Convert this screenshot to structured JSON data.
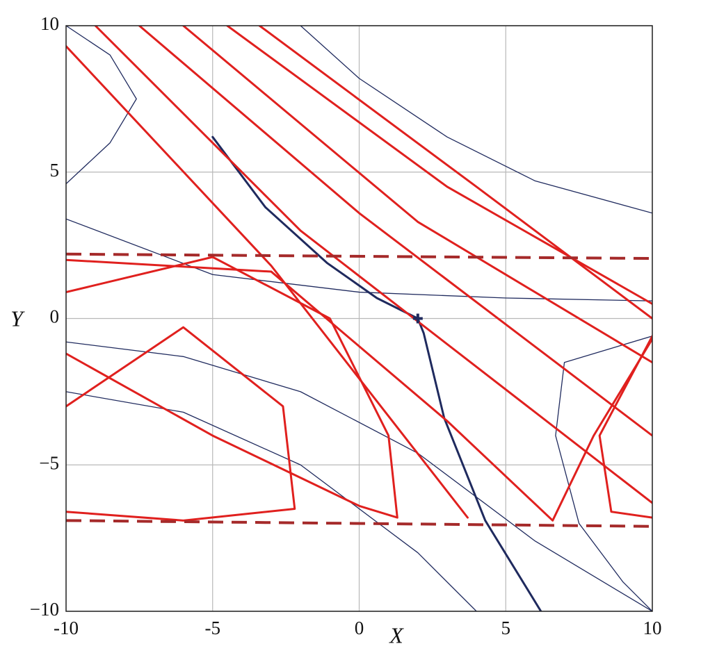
{
  "chart_data": {
    "type": "line",
    "x_label": "X",
    "y_label": "Y",
    "xlim": [
      -10,
      10
    ],
    "ylim": [
      -10,
      10
    ],
    "xticks": [
      -10,
      -5,
      0,
      5,
      10
    ],
    "yticks": [
      {
        "value": -10,
        "label": "−10"
      },
      {
        "value": -5,
        "label": "−5"
      },
      0,
      5,
      10
    ],
    "grid": true,
    "series": [
      {
        "color": "#1f2a5e",
        "width": 1.3,
        "x": [
          -10,
          -5,
          0,
          5,
          10
        ],
        "values": [
          3.4,
          1.5,
          0.9,
          0.7,
          0.6
        ]
      },
      {
        "color": "#1f2a5e",
        "width": 1.3,
        "x": [
          -2,
          0,
          3,
          6,
          10
        ],
        "values": [
          10,
          8.2,
          6.2,
          4.7,
          3.6
        ]
      },
      {
        "color": "#1f2a5e",
        "width": 1.3,
        "x": [
          -10,
          -6,
          -2,
          2,
          6,
          10
        ],
        "values": [
          -0.8,
          -1.3,
          -2.5,
          -4.6,
          -7.6,
          -10
        ]
      },
      {
        "color": "#1f2a5e",
        "width": 1.3,
        "x": [
          -10,
          -6,
          -2,
          2,
          4
        ],
        "values": [
          -2.5,
          -3.2,
          -5,
          -8,
          -10
        ]
      },
      {
        "color": "#1f2a5e",
        "width": 1.3,
        "x": [
          -10,
          -8.5,
          -7.6,
          -8.5,
          -10
        ],
        "values": [
          4.6,
          6,
          7.5,
          9,
          10
        ]
      },
      {
        "color": "#1f2a5e",
        "width": 1.3,
        "x": [
          10,
          7,
          6.7,
          7.5,
          9,
          10
        ],
        "values": [
          -0.6,
          -1.5,
          -4,
          -7,
          -9,
          -10
        ]
      },
      {
        "color": "#1f2a5e",
        "width": 3,
        "x": [
          -5,
          -3.2,
          -1.1,
          0.6,
          2,
          2.2,
          2.9,
          4.3,
          6.2
        ],
        "values": [
          6.2,
          3.8,
          1.9,
          0.7,
          0,
          -0.5,
          -3.4,
          -6.9,
          -10
        ]
      },
      {
        "color": "#e0201e",
        "width": 3,
        "x": [
          -10,
          -3,
          3.7
        ],
        "values": [
          9.3,
          1.8,
          -6.8
        ]
      },
      {
        "color": "#e0201e",
        "width": 3,
        "x": [
          -9,
          -2,
          10
        ],
        "values": [
          10,
          3,
          -6.3
        ]
      },
      {
        "color": "#e0201e",
        "width": 3,
        "x": [
          -7.5,
          0,
          10
        ],
        "values": [
          10,
          3.6,
          -4
        ]
      },
      {
        "color": "#e0201e",
        "width": 3,
        "x": [
          -6,
          2,
          10
        ],
        "values": [
          10,
          3.3,
          -1.5
        ]
      },
      {
        "color": "#e0201e",
        "width": 3,
        "x": [
          -4.5,
          3,
          10
        ],
        "values": [
          10,
          4.5,
          0.5
        ]
      },
      {
        "color": "#e0201e",
        "width": 3,
        "x": [
          -3.4,
          4,
          10
        ],
        "values": [
          10,
          4.5,
          0
        ]
      },
      {
        "color": "#e0201e",
        "width": 3,
        "x": [
          -10,
          -5,
          -1,
          1,
          1.3,
          0,
          -5,
          -10
        ],
        "values": [
          0.9,
          2.1,
          0,
          -4,
          -6.8,
          -6.4,
          -4,
          -1.2
        ]
      },
      {
        "color": "#e0201e",
        "width": 3,
        "x": [
          -10,
          -6,
          -2.6,
          -2.2,
          -6,
          -10
        ],
        "values": [
          -3,
          -0.3,
          -3,
          -6.5,
          -6.9,
          -6.6
        ]
      },
      {
        "color": "#e0201e",
        "width": 3,
        "x": [
          -10,
          -3,
          3,
          6.6,
          8,
          10
        ],
        "values": [
          2,
          1.6,
          -3.5,
          -6.9,
          -4,
          -0.7
        ]
      },
      {
        "color": "#e0201e",
        "width": 3,
        "x": [
          10,
          8.2,
          8.6,
          10
        ],
        "values": [
          -0.6,
          -4,
          -6.6,
          -6.8
        ]
      },
      {
        "color": "#a52a2a",
        "width": 4,
        "dash": true,
        "x": [
          -10,
          10
        ],
        "values": [
          2.2,
          2.05
        ]
      },
      {
        "color": "#a52a2a",
        "width": 4,
        "dash": true,
        "x": [
          -10,
          10
        ],
        "values": [
          -6.9,
          -7.1
        ]
      }
    ],
    "marker": {
      "x": 2,
      "y": 0,
      "color": "#1f2a5e"
    }
  }
}
